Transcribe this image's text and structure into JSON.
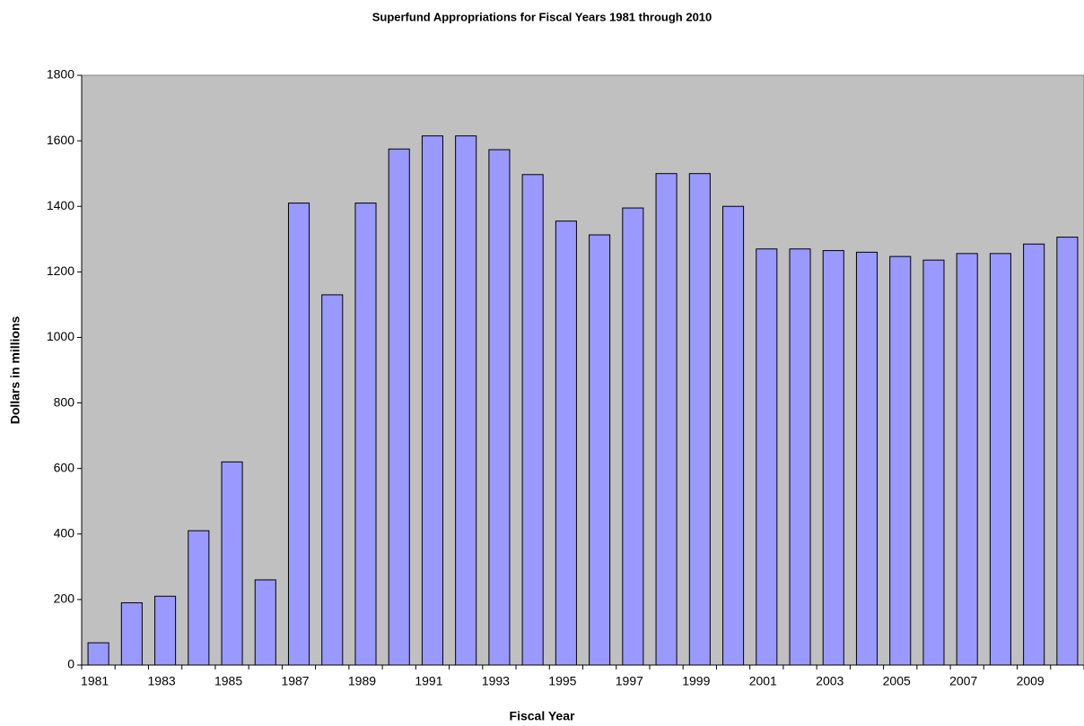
{
  "chart_data": {
    "type": "bar",
    "title": "Superfund Appropriations for Fiscal Years 1981 through 2010",
    "xlabel": "Fiscal Year",
    "ylabel": "Dollars in millions",
    "categories": [
      "1981",
      null,
      "1983",
      null,
      "1985",
      null,
      "1987",
      null,
      "1989",
      null,
      "1991",
      null,
      "1993",
      null,
      "1995",
      null,
      "1997",
      null,
      "1999",
      null,
      "2001",
      null,
      "2003",
      null,
      "2005",
      null,
      "2007",
      null,
      "2009",
      null
    ],
    "values": [
      68,
      190,
      210,
      410,
      620,
      260,
      1410,
      1130,
      1410,
      1575,
      1615,
      1615,
      1573,
      1497,
      1355,
      1313,
      1395,
      1500,
      1500,
      1400,
      1270,
      1270,
      1265,
      1260,
      1247,
      1236,
      1256,
      1256,
      1285,
      1306
    ],
    "color": "#9999ff",
    "background": "#c0c0c0",
    "ylim": [
      0,
      1800
    ],
    "yticks": [
      0,
      200,
      400,
      600,
      800,
      1000,
      1200,
      1400,
      1600,
      1800
    ],
    "grid": false
  }
}
